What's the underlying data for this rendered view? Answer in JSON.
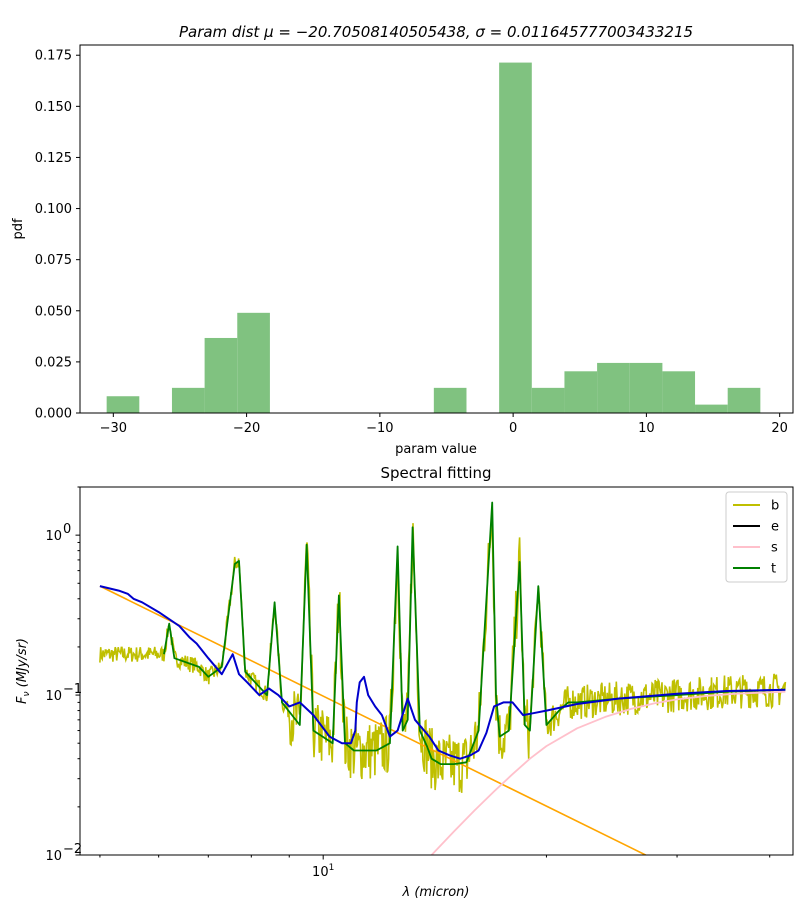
{
  "chart_data": [
    {
      "type": "bar",
      "title": "Param dist μ = −20.70508140505438,  σ = 0.011645777003433215",
      "title_parts": {
        "prefix": "Param dist μ = ",
        "mu": "−20.70508140505438",
        "sigma_prefix": ",  σ = ",
        "sigma": "0.011645777003433215"
      },
      "xlabel": "param value",
      "ylabel": "pdf",
      "xlim": [
        -32.5,
        21
      ],
      "ylim": [
        0,
        0.18
      ],
      "bin_width": 2.45,
      "bins": [
        {
          "x0": -30.5,
          "value": 0.0082
        },
        {
          "x0": -25.6,
          "value": 0.0123
        },
        {
          "x0": -23.15,
          "value": 0.0367
        },
        {
          "x0": -20.7,
          "value": 0.049
        },
        {
          "x0": -5.95,
          "value": 0.0123
        },
        {
          "x0": -1.05,
          "value": 0.1714
        },
        {
          "x0": 1.4,
          "value": 0.0123
        },
        {
          "x0": 3.85,
          "value": 0.0204
        },
        {
          "x0": 6.3,
          "value": 0.0245
        },
        {
          "x0": 8.75,
          "value": 0.0245
        },
        {
          "x0": 11.2,
          "value": 0.0204
        },
        {
          "x0": 13.65,
          "value": 0.0041
        },
        {
          "x0": 16.1,
          "value": 0.0123
        }
      ],
      "bar_color": "#80c280",
      "xticks": [
        -30,
        -20,
        -10,
        0,
        10,
        20
      ],
      "xtick_labels": [
        "−30",
        "−20",
        "−10",
        "0",
        "10",
        "20"
      ],
      "yticks": [
        0.0,
        0.025,
        0.05,
        0.075,
        0.1,
        0.125,
        0.15,
        0.175
      ],
      "ytick_labels": [
        "0.000",
        "0.025",
        "0.050",
        "0.075",
        "0.100",
        "0.125",
        "0.150",
        "0.175"
      ]
    },
    {
      "type": "line",
      "title": "Spectral fitting",
      "xlabel": "λ (micron)",
      "ylabel": "F_ν (MJy/sr)",
      "xscale": "log",
      "yscale": "log",
      "xlim": [
        4.7,
        43
      ],
      "ylim": [
        0.01,
        2.0
      ],
      "x_major_ticks": [
        10
      ],
      "x_major_tick_labels": [
        "10"
      ],
      "y_major_ticks": [
        0.01,
        0.1,
        1
      ],
      "y_major_tick_labels": [
        "10",
        "10",
        "10"
      ],
      "y_major_tick_exponents": [
        "−2",
        "−1",
        "0"
      ],
      "legend_placement": "top-right",
      "legend": [
        {
          "label": "b",
          "color": "#bfbf00"
        },
        {
          "label": "e",
          "color": "#000000"
        },
        {
          "label": "s",
          "color": "#ffc0cb"
        },
        {
          "label": "t",
          "color": "#008000"
        }
      ],
      "continuum_line": {
        "color": "#ffa500",
        "x": [
          5.0,
          30.0
        ],
        "y": [
          0.48,
          0.008
        ]
      },
      "series": [
        {
          "name": "s",
          "color": "#ffc0cb",
          "x": [
            14.0,
            15.0,
            16.0,
            17.0,
            18.0,
            19.0,
            20.0,
            22.0,
            24.0,
            26.0,
            28.0,
            30.0,
            33.0,
            36.0,
            40.0,
            42.0
          ],
          "y": [
            0.01,
            0.014,
            0.019,
            0.025,
            0.032,
            0.04,
            0.048,
            0.062,
            0.073,
            0.082,
            0.089,
            0.094,
            0.099,
            0.102,
            0.104,
            0.105
          ]
        },
        {
          "name": "t",
          "color": "#008000",
          "x": [
            6.1,
            6.2,
            6.3,
            6.8,
            7.0,
            7.3,
            7.6,
            7.7,
            7.85,
            8.4,
            8.6,
            8.8,
            9.3,
            9.5,
            9.7,
            10.3,
            10.5,
            10.7,
            11.0,
            11.8,
            12.3,
            12.6,
            12.8,
            13.0,
            13.2,
            13.5,
            13.8,
            14.0,
            14.4,
            15.0,
            15.6,
            16.2,
            16.9,
            17.1,
            17.3,
            17.8,
            18.4,
            18.7,
            19.0,
            19.5,
            20.0,
            20.8,
            21.1,
            21.4,
            22.0,
            25.0,
            30.0,
            35.0,
            42.0
          ],
          "y": [
            0.18,
            0.28,
            0.17,
            0.15,
            0.13,
            0.15,
            0.66,
            0.69,
            0.14,
            0.1,
            0.38,
            0.09,
            0.065,
            0.87,
            0.06,
            0.05,
            0.42,
            0.05,
            0.045,
            0.045,
            0.05,
            0.85,
            0.06,
            0.07,
            1.12,
            0.06,
            0.048,
            0.04,
            0.037,
            0.037,
            0.038,
            0.06,
            1.6,
            0.1,
            0.055,
            0.06,
            0.68,
            0.065,
            0.06,
            0.48,
            0.065,
            0.08,
            0.085,
            0.09,
            0.09,
            0.095,
            0.1,
            0.105,
            0.108
          ]
        },
        {
          "name": "blue_total",
          "color": "#0000cc",
          "x": [
            5.0,
            5.3,
            5.45,
            5.55,
            5.7,
            6.0,
            6.4,
            6.6,
            6.75,
            7.0,
            7.3,
            7.55,
            7.7,
            7.9,
            8.2,
            8.45,
            8.7,
            9.0,
            9.3,
            9.7,
            10.2,
            10.6,
            10.9,
            11.05,
            11.1,
            11.2,
            11.35,
            11.5,
            11.75,
            12.0,
            12.3,
            12.6,
            13.0,
            13.3,
            13.9,
            14.3,
            14.8,
            15.3,
            15.8,
            16.2,
            16.6,
            17.0,
            17.5,
            18.0,
            18.6,
            19.2,
            20.0,
            22.0,
            25.0,
            30.0,
            35.0,
            42.0
          ],
          "y": [
            0.48,
            0.45,
            0.43,
            0.4,
            0.38,
            0.33,
            0.27,
            0.23,
            0.21,
            0.17,
            0.135,
            0.18,
            0.135,
            0.12,
            0.1,
            0.11,
            0.1,
            0.085,
            0.09,
            0.075,
            0.055,
            0.05,
            0.05,
            0.06,
            0.09,
            0.12,
            0.13,
            0.1,
            0.085,
            0.075,
            0.055,
            0.06,
            0.095,
            0.07,
            0.055,
            0.045,
            0.042,
            0.04,
            0.042,
            0.045,
            0.058,
            0.085,
            0.09,
            0.09,
            0.075,
            0.077,
            0.08,
            0.088,
            0.095,
            0.102,
            0.106,
            0.108
          ]
        }
      ]
    }
  ]
}
